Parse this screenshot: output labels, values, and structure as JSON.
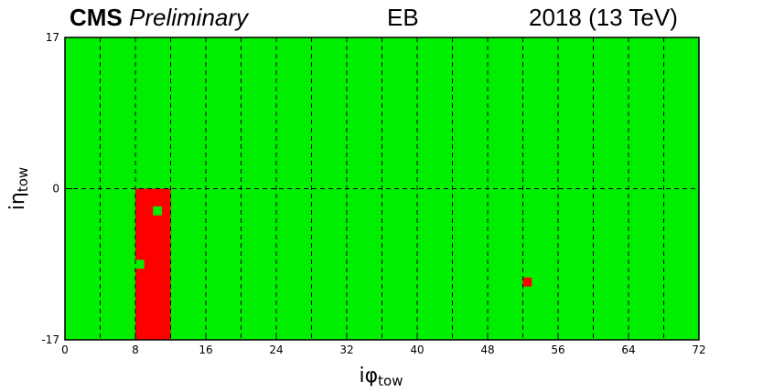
{
  "header": {
    "experiment": "CMS",
    "status": "Preliminary",
    "region": "EB",
    "run_info": "2018 (13 TeV)"
  },
  "colors": {
    "good": "#00ee00",
    "bad": "#ff0000",
    "grid": "#000000"
  },
  "chart_data": {
    "type": "heatmap",
    "xlabel_main": "iφ",
    "xlabel_sub": "tow",
    "ylabel_main": "iη",
    "ylabel_sub": "tow",
    "xlim": [
      0,
      72
    ],
    "ylim": [
      -17,
      17
    ],
    "x_ticks": [
      "0",
      "8",
      "16",
      "24",
      "32",
      "40",
      "48",
      "56",
      "64",
      "72"
    ],
    "y_ticks": [
      "17",
      "0",
      "-17"
    ],
    "x_tick_values": [
      0,
      8,
      16,
      24,
      32,
      40,
      48,
      56,
      64,
      72
    ],
    "y_tick_values": [
      17,
      0,
      -17
    ],
    "x_dashed_lines": [
      4,
      8,
      12,
      16,
      20,
      24,
      28,
      32,
      36,
      40,
      44,
      48,
      52,
      56,
      60,
      64,
      68
    ],
    "y_dashed_lines": [
      0
    ],
    "default_state": "good",
    "regions": [
      {
        "state": "bad",
        "x0": 8,
        "x1": 12,
        "y0": -17,
        "y1": 0
      },
      {
        "state": "good",
        "x0": 10,
        "x1": 11,
        "y0": -3,
        "y1": -2
      },
      {
        "state": "good",
        "x0": 8,
        "x1": 9,
        "y0": -9,
        "y1": -8
      },
      {
        "state": "bad",
        "x0": 52,
        "x1": 53,
        "y0": -11,
        "y1": -10
      }
    ]
  }
}
